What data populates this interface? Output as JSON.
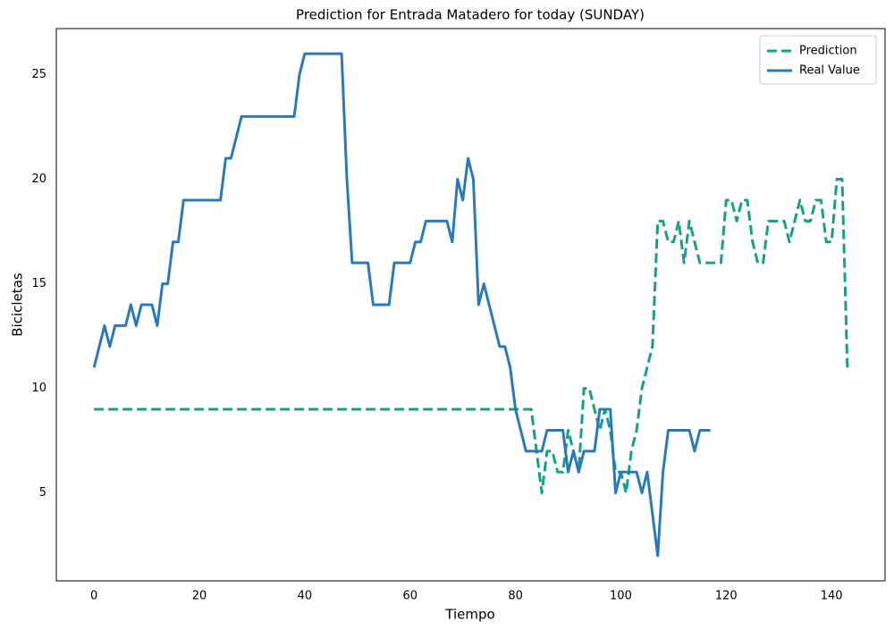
{
  "chart_data": {
    "type": "line",
    "title": "Prediction for Entrada Matadero for today (SUNDAY)",
    "x_label": "Tiempo",
    "y_label": "Bicicletas",
    "x": [
      0,
      1,
      2,
      3,
      4,
      5,
      6,
      7,
      8,
      9,
      10,
      11,
      12,
      13,
      14,
      15,
      16,
      17,
      18,
      19,
      20,
      21,
      22,
      23,
      24,
      25,
      26,
      27,
      28,
      29,
      30,
      31,
      32,
      33,
      34,
      35,
      36,
      37,
      38,
      39,
      40,
      41,
      42,
      43,
      44,
      45,
      46,
      47,
      48,
      49,
      50,
      51,
      52,
      53,
      54,
      55,
      56,
      57,
      58,
      59,
      60,
      61,
      62,
      63,
      64,
      65,
      66,
      67,
      68,
      69,
      70,
      71,
      72,
      73,
      74,
      75,
      76,
      77,
      78,
      79,
      80,
      81,
      82,
      83,
      84,
      85,
      86,
      87,
      88,
      89,
      90,
      91,
      92,
      93,
      94,
      95,
      96,
      97,
      98,
      99,
      100,
      101,
      102,
      103,
      104,
      105,
      106,
      107,
      108,
      109,
      110,
      111,
      112,
      113,
      114,
      115,
      116,
      117,
      118,
      119,
      120,
      121,
      122,
      123,
      124,
      125,
      126,
      127,
      128,
      129,
      130,
      131,
      132,
      133,
      134,
      135,
      136,
      137,
      138,
      139,
      140,
      141,
      142,
      143
    ],
    "series": [
      {
        "name": "Prediction",
        "color": "#17a086",
        "dash": true,
        "values": [
          9,
          9,
          9,
          9,
          9,
          9,
          9,
          9,
          9,
          9,
          9,
          9,
          9,
          9,
          9,
          9,
          9,
          9,
          9,
          9,
          9,
          9,
          9,
          9,
          9,
          9,
          9,
          9,
          9,
          9,
          9,
          9,
          9,
          9,
          9,
          9,
          9,
          9,
          9,
          9,
          9,
          9,
          9,
          9,
          9,
          9,
          9,
          9,
          9,
          9,
          9,
          9,
          9,
          9,
          9,
          9,
          9,
          9,
          9,
          9,
          9,
          9,
          9,
          9,
          9,
          9,
          9,
          9,
          9,
          9,
          9,
          9,
          9,
          9,
          9,
          9,
          9,
          9,
          9,
          9,
          9,
          9,
          9,
          9,
          7,
          5,
          7,
          7,
          6,
          6,
          8,
          7,
          6,
          10,
          10,
          9,
          8,
          9,
          8,
          6,
          6,
          5,
          7,
          8,
          10,
          11,
          12,
          18,
          18,
          17,
          17,
          18,
          16,
          18,
          17,
          16,
          16,
          16,
          16,
          16,
          19,
          19,
          18,
          19,
          19,
          17,
          16,
          16,
          18,
          18,
          18,
          18,
          17,
          18,
          19,
          18,
          18,
          19,
          19,
          17,
          17,
          20,
          20,
          11
        ]
      },
      {
        "name": "Real Value",
        "color": "#2a7ab9",
        "dash": false,
        "values": [
          11,
          12,
          13,
          12,
          13,
          13,
          13,
          14,
          13,
          14,
          14,
          14,
          13,
          15,
          15,
          17,
          17,
          19,
          19,
          19,
          19,
          19,
          19,
          19,
          19,
          21,
          21,
          22,
          23,
          23,
          23,
          23,
          23,
          23,
          23,
          23,
          23,
          23,
          23,
          25,
          26,
          26,
          26,
          26,
          26,
          26,
          26,
          26,
          20,
          16,
          16,
          16,
          16,
          14,
          14,
          14,
          14,
          16,
          16,
          16,
          16,
          17,
          17,
          18,
          18,
          18,
          18,
          18,
          17,
          20,
          19,
          21,
          20,
          14,
          15,
          14,
          13,
          12,
          12,
          11,
          9,
          8,
          7,
          7,
          7,
          7,
          8,
          8,
          8,
          8,
          6,
          7,
          6,
          7,
          7,
          7,
          9,
          9,
          9,
          5,
          6,
          6,
          6,
          6,
          5,
          6,
          4,
          2,
          6,
          8,
          8,
          8,
          8,
          8,
          7,
          8,
          8,
          8,
          null,
          null,
          null,
          null,
          null,
          null,
          null,
          null,
          null,
          null,
          null,
          null,
          null,
          null,
          null,
          null,
          null,
          null,
          null,
          null,
          null,
          null,
          null,
          null,
          null,
          null
        ]
      }
    ],
    "xlim": [
      -7.15,
      150.15
    ],
    "ylim": [
      0.8,
      27.2
    ],
    "xticks": [
      0,
      20,
      40,
      60,
      80,
      100,
      120,
      140
    ],
    "yticks": [
      5,
      10,
      15,
      20,
      25
    ],
    "grid": false,
    "legend": "upper-right"
  }
}
